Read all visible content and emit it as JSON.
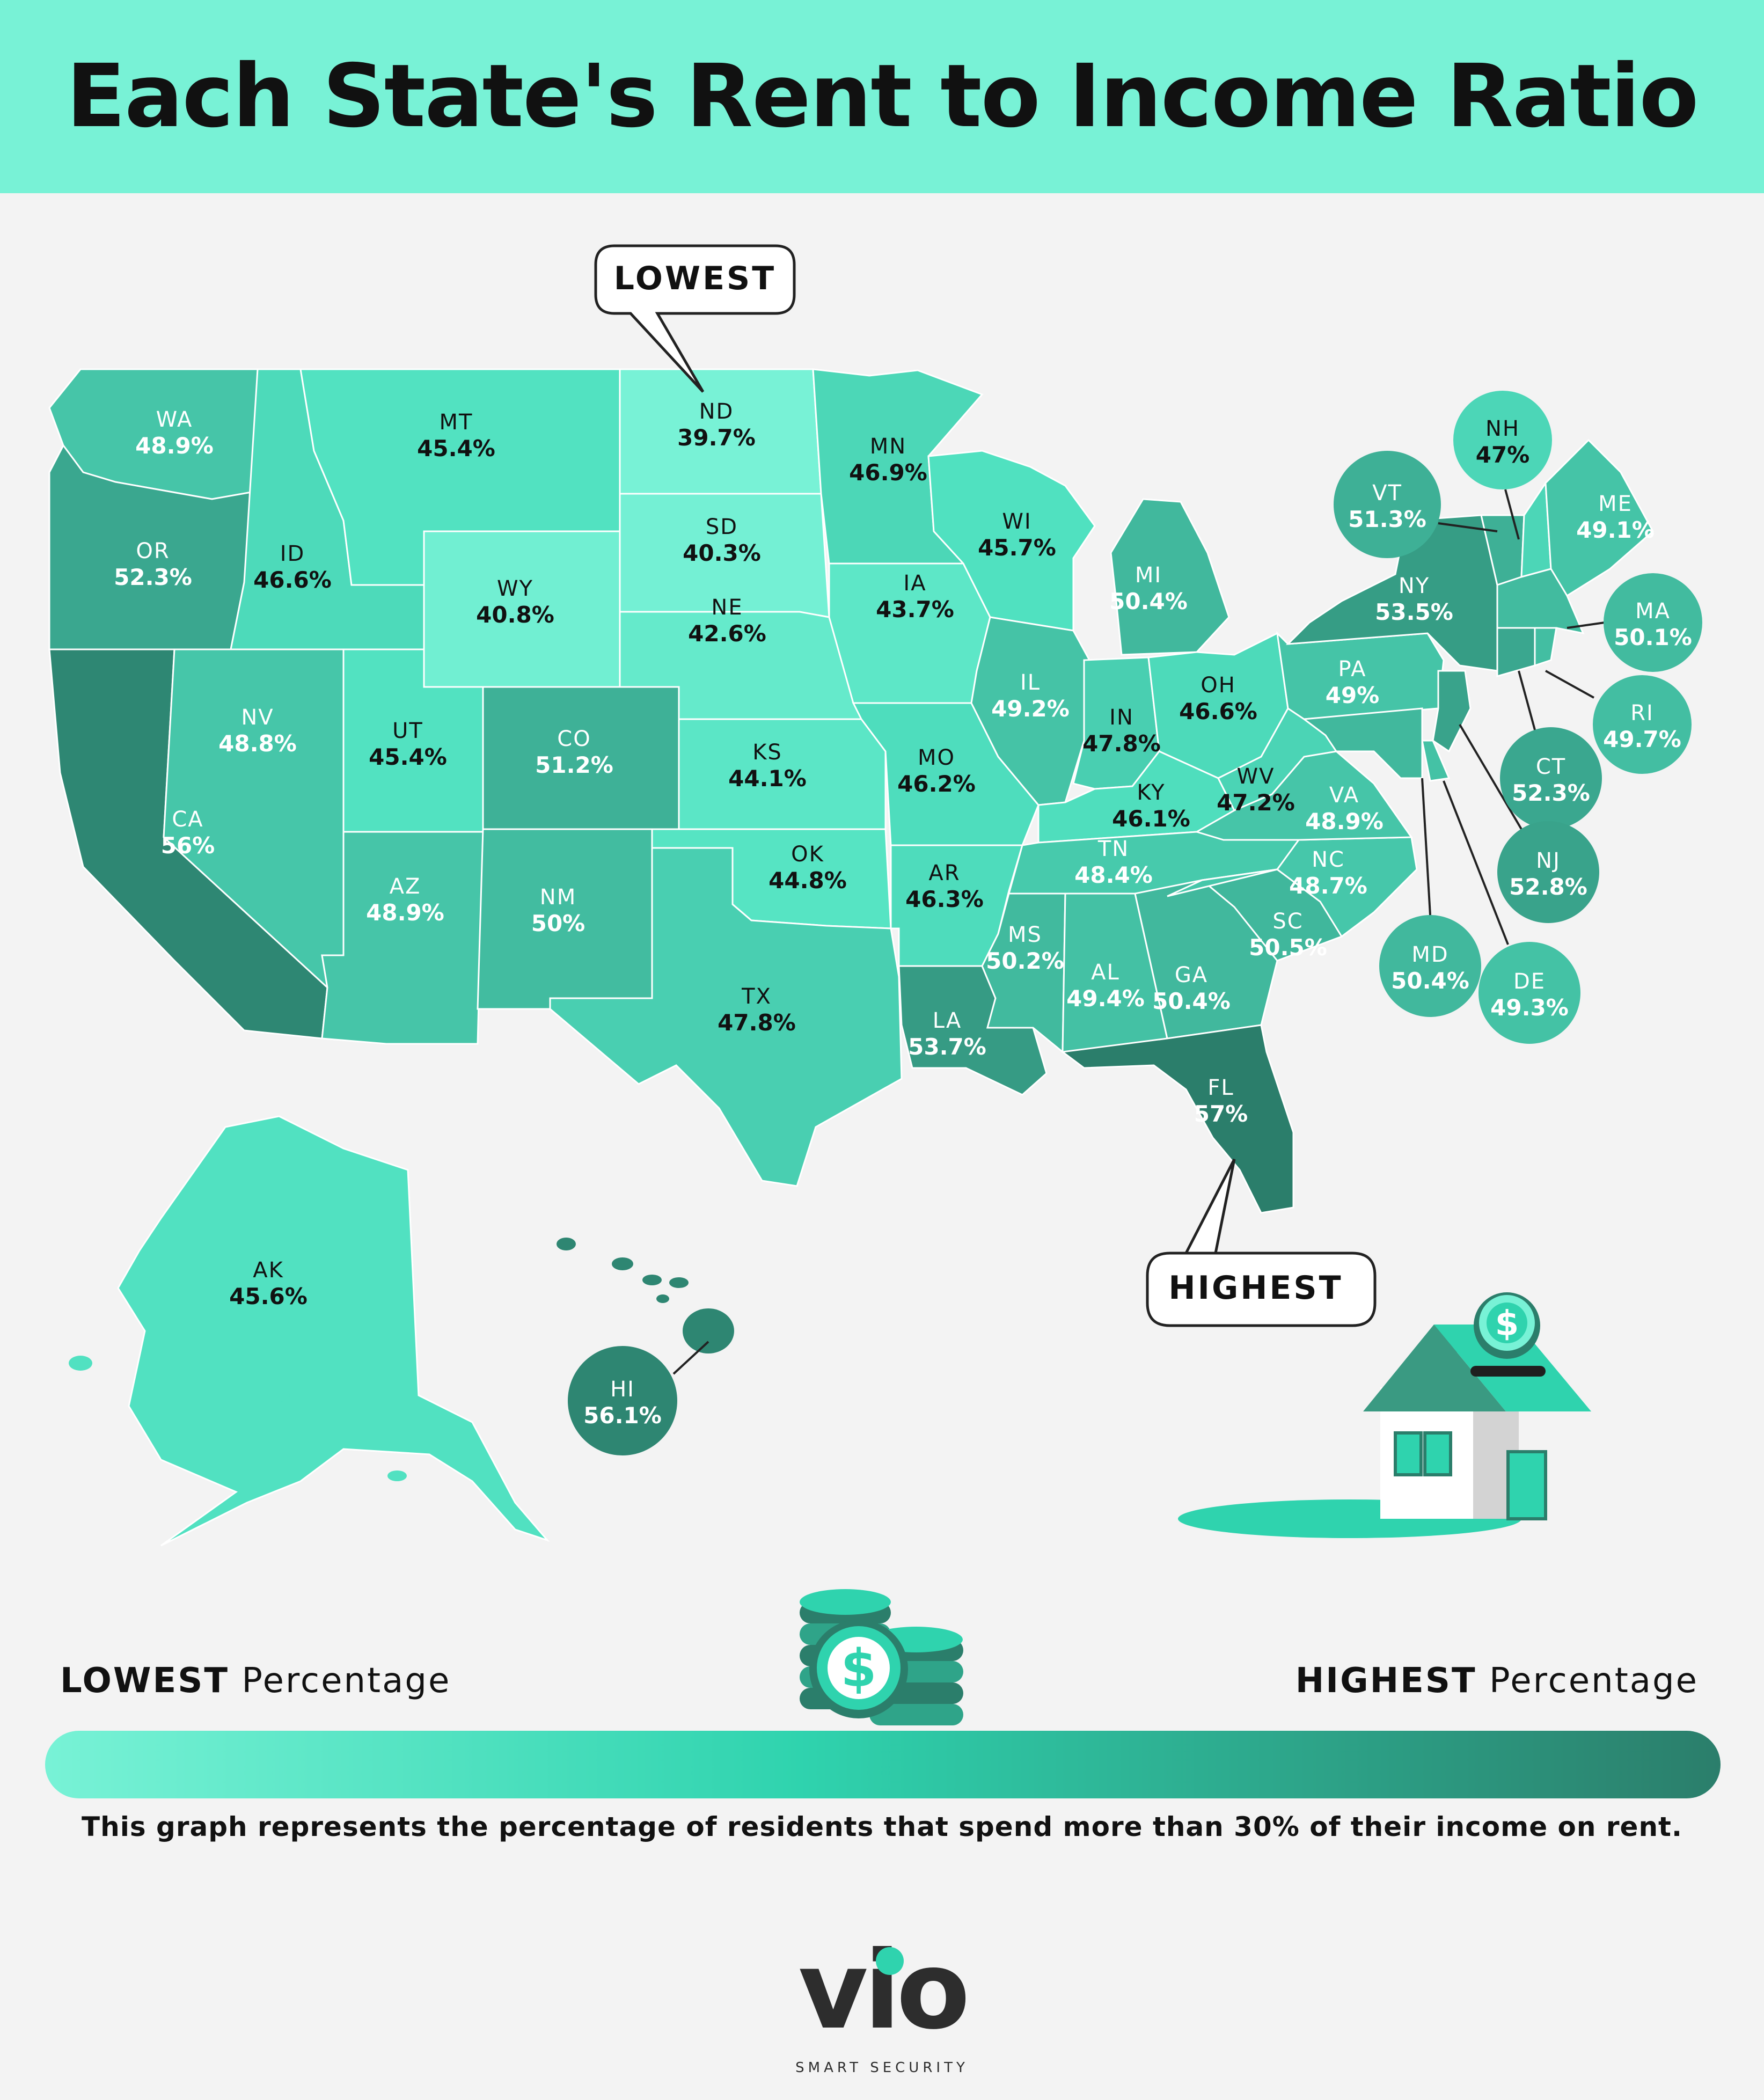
{
  "title": "Each State's Rent to Income Ratio",
  "callouts": {
    "lowest": "LOWEST",
    "highest": "HIGHEST"
  },
  "legend": {
    "low_bold": "LOWEST",
    "low_rest": "Percentage",
    "high_bold": "HIGHEST",
    "high_rest": "Percentage"
  },
  "caption": "This graph represents the percentage of residents that spend more than 30% of their income on rent.",
  "logo": {
    "text": "VIO",
    "tagline": "SMART SECURITY"
  },
  "colors": {
    "banner": "#78f2d6",
    "lowest": "#78f2d6",
    "mid": "#2fd3ae",
    "highest": "#2b7e6b",
    "background": "#f3f3f3"
  },
  "states": [
    {
      "code": "WA",
      "value": 48.9,
      "label": "48.9%"
    },
    {
      "code": "OR",
      "value": 52.3,
      "label": "52.3%"
    },
    {
      "code": "CA",
      "value": 56,
      "label": "56%"
    },
    {
      "code": "NV",
      "value": 48.8,
      "label": "48.8%"
    },
    {
      "code": "ID",
      "value": 46.6,
      "label": "46.6%"
    },
    {
      "code": "MT",
      "value": 45.4,
      "label": "45.4%"
    },
    {
      "code": "WY",
      "value": 40.8,
      "label": "40.8%"
    },
    {
      "code": "UT",
      "value": 45.4,
      "label": "45.4%"
    },
    {
      "code": "AZ",
      "value": 48.9,
      "label": "48.9%"
    },
    {
      "code": "CO",
      "value": 51.2,
      "label": "51.2%"
    },
    {
      "code": "NM",
      "value": 50,
      "label": "50%"
    },
    {
      "code": "ND",
      "value": 39.7,
      "label": "39.7%"
    },
    {
      "code": "SD",
      "value": 40.3,
      "label": "40.3%"
    },
    {
      "code": "NE",
      "value": 42.6,
      "label": "42.6%"
    },
    {
      "code": "KS",
      "value": 44.1,
      "label": "44.1%"
    },
    {
      "code": "OK",
      "value": 44.8,
      "label": "44.8%"
    },
    {
      "code": "TX",
      "value": 47.8,
      "label": "47.8%"
    },
    {
      "code": "MN",
      "value": 46.9,
      "label": "46.9%"
    },
    {
      "code": "IA",
      "value": 43.7,
      "label": "43.7%"
    },
    {
      "code": "MO",
      "value": 46.2,
      "label": "46.2%"
    },
    {
      "code": "AR",
      "value": 46.3,
      "label": "46.3%"
    },
    {
      "code": "LA",
      "value": 53.7,
      "label": "53.7%"
    },
    {
      "code": "WI",
      "value": 45.7,
      "label": "45.7%"
    },
    {
      "code": "IL",
      "value": 49.2,
      "label": "49.2%"
    },
    {
      "code": "MI",
      "value": 50.4,
      "label": "50.4%"
    },
    {
      "code": "IN",
      "value": 47.8,
      "label": "47.8%"
    },
    {
      "code": "OH",
      "value": 46.6,
      "label": "46.6%"
    },
    {
      "code": "KY",
      "value": 46.1,
      "label": "46.1%"
    },
    {
      "code": "TN",
      "value": 48.4,
      "label": "48.4%"
    },
    {
      "code": "MS",
      "value": 50.2,
      "label": "50.2%"
    },
    {
      "code": "AL",
      "value": 49.4,
      "label": "49.4%"
    },
    {
      "code": "GA",
      "value": 50.4,
      "label": "50.4%"
    },
    {
      "code": "FL",
      "value": 57,
      "label": "57%"
    },
    {
      "code": "SC",
      "value": 50.5,
      "label": "50.5%"
    },
    {
      "code": "NC",
      "value": 48.7,
      "label": "48.7%"
    },
    {
      "code": "VA",
      "value": 48.9,
      "label": "48.9%"
    },
    {
      "code": "WV",
      "value": 47.2,
      "label": "47.2%"
    },
    {
      "code": "PA",
      "value": 49,
      "label": "49%"
    },
    {
      "code": "NY",
      "value": 53.5,
      "label": "53.5%"
    },
    {
      "code": "VT",
      "value": 51.3,
      "label": "51.3%"
    },
    {
      "code": "NH",
      "value": 47,
      "label": "47%"
    },
    {
      "code": "ME",
      "value": 49.1,
      "label": "49.1%"
    },
    {
      "code": "MA",
      "value": 50.1,
      "label": "50.1%"
    },
    {
      "code": "RI",
      "value": 49.7,
      "label": "49.7%"
    },
    {
      "code": "CT",
      "value": 52.3,
      "label": "52.3%"
    },
    {
      "code": "NJ",
      "value": 52.8,
      "label": "52.8%"
    },
    {
      "code": "DE",
      "value": 49.3,
      "label": "49.3%"
    },
    {
      "code": "MD",
      "value": 50.4,
      "label": "50.4%"
    },
    {
      "code": "AK",
      "value": 45.6,
      "label": "45.6%"
    },
    {
      "code": "HI",
      "value": 56.1,
      "label": "56.1%"
    }
  ]
}
